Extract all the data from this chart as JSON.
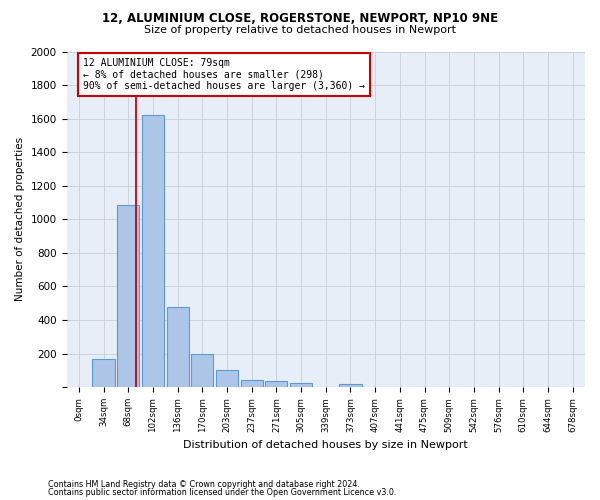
{
  "title_line1": "12, ALUMINIUM CLOSE, ROGERSTONE, NEWPORT, NP10 9NE",
  "title_line2": "Size of property relative to detached houses in Newport",
  "xlabel": "Distribution of detached houses by size in Newport",
  "ylabel": "Number of detached properties",
  "footnote_line1": "Contains HM Land Registry data © Crown copyright and database right 2024.",
  "footnote_line2": "Contains public sector information licensed under the Open Government Licence v3.0.",
  "bar_labels": [
    "0sqm",
    "34sqm",
    "68sqm",
    "102sqm",
    "136sqm",
    "170sqm",
    "203sqm",
    "237sqm",
    "271sqm",
    "305sqm",
    "339sqm",
    "373sqm",
    "407sqm",
    "441sqm",
    "475sqm",
    "509sqm",
    "542sqm",
    "576sqm",
    "610sqm",
    "644sqm",
    "678sqm"
  ],
  "bar_values": [
    0,
    165,
    1085,
    1620,
    480,
    200,
    100,
    45,
    35,
    22,
    0,
    20,
    0,
    0,
    0,
    0,
    0,
    0,
    0,
    0,
    0
  ],
  "bar_color": "#adc6e8",
  "bar_edge_color": "#5b9bd5",
  "ylim": [
    0,
    2000
  ],
  "yticks": [
    0,
    200,
    400,
    600,
    800,
    1000,
    1200,
    1400,
    1600,
    1800,
    2000
  ],
  "vline_x": 2.32,
  "annotation_box_text": "12 ALUMINIUM CLOSE: 79sqm\n← 8% of detached houses are smaller (298)\n90% of semi-detached houses are larger (3,360) →",
  "grid_color": "#c8d0dc",
  "background_color": "#e8eef8"
}
